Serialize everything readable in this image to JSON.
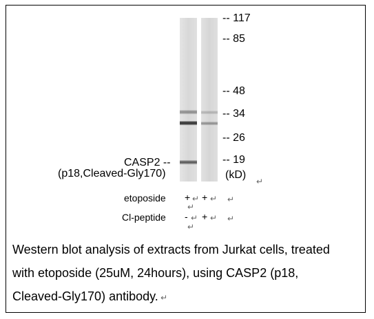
{
  "markers": {
    "m117": "-- 117",
    "m85": "-- 85",
    "m48": "-- 48",
    "m34": "-- 34",
    "m26": "-- 26",
    "m19": "-- 19",
    "unit": "(kD)"
  },
  "target_label": {
    "line1": "CASP2 --",
    "line2": "(p18,Cleaved-Gly170)"
  },
  "rows": {
    "etoposide": "etoposide",
    "cl_peptide": "Cl-peptide",
    "lane1_etoposide": "+",
    "lane2_etoposide": "+",
    "lane1_peptide": "-",
    "lane2_peptide": "+"
  },
  "caption": {
    "line1": "Western blot analysis of extracts from Jurkat cells, treated",
    "line2": "with etoposide (25uM, 24hours), using CASP2 (p18,",
    "line3": "Cleaved-Gly170) antibody."
  },
  "colors": {
    "lane_background": "#dcdcdc",
    "band_dark": "#2a2a2a",
    "border": "#000000"
  }
}
